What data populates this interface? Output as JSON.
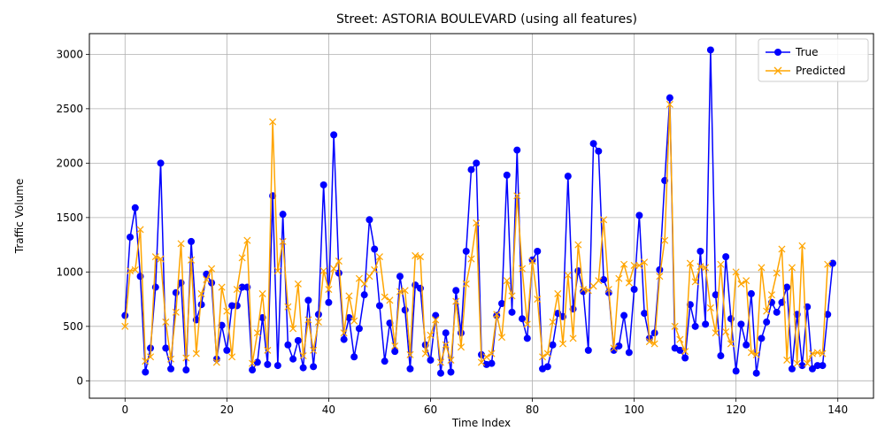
{
  "chart_data": {
    "type": "line",
    "title": "Street: ASTORIA BOULEVARD (using all features)",
    "xlabel": "Time Index",
    "ylabel": "Traffic Volume",
    "xlim": [
      -7,
      147
    ],
    "ylim": [
      -160,
      3190
    ],
    "xticks": [
      0,
      20,
      40,
      60,
      80,
      100,
      120,
      140
    ],
    "yticks": [
      0,
      500,
      1000,
      1500,
      2000,
      2500,
      3000
    ],
    "grid": true,
    "legend_position": "top-right",
    "series": [
      {
        "name": "True",
        "color": "#0000ff",
        "marker": "circle",
        "values": [
          600,
          1320,
          1590,
          960,
          80,
          300,
          860,
          2000,
          300,
          110,
          810,
          900,
          100,
          1280,
          560,
          700,
          980,
          900,
          200,
          510,
          280,
          690,
          690,
          860,
          860,
          100,
          170,
          580,
          150,
          1700,
          140,
          1530,
          330,
          200,
          370,
          120,
          740,
          130,
          610,
          1800,
          720,
          2260,
          990,
          380,
          580,
          220,
          480,
          790,
          1480,
          1210,
          690,
          180,
          530,
          270,
          960,
          650,
          110,
          880,
          850,
          330,
          190,
          600,
          70,
          440,
          80,
          830,
          440,
          1190,
          1940,
          2000,
          240,
          150,
          160,
          600,
          710,
          1890,
          630,
          2120,
          570,
          390,
          1110,
          1190,
          110,
          130,
          330,
          620,
          590,
          1880,
          660,
          1010,
          820,
          280,
          2180,
          2110,
          930,
          810,
          280,
          320,
          600,
          260,
          840,
          1520,
          620,
          390,
          440,
          1020,
          1840,
          2600,
          300,
          280,
          210,
          700,
          500,
          1190,
          520,
          3040,
          790,
          230,
          1140,
          570,
          90,
          520,
          330,
          800,
          70,
          390,
          540,
          720,
          630,
          720,
          860,
          110,
          610,
          140,
          680,
          110,
          140,
          140,
          610,
          1080
        ]
      },
      {
        "name": "Predicted",
        "color": "#ffa500",
        "marker": "x",
        "values": [
          500,
          1010,
          1020,
          1390,
          180,
          220,
          1140,
          1120,
          540,
          200,
          630,
          1260,
          210,
          1110,
          250,
          800,
          930,
          1030,
          170,
          860,
          640,
          220,
          840,
          1130,
          1290,
          160,
          440,
          800,
          280,
          2380,
          1010,
          1280,
          680,
          480,
          890,
          230,
          560,
          280,
          540,
          1010,
          840,
          1030,
          1100,
          440,
          780,
          550,
          940,
          890,
          960,
          1020,
          1140,
          770,
          740,
          320,
          820,
          830,
          240,
          1150,
          1140,
          250,
          420,
          560,
          170,
          330,
          190,
          730,
          310,
          890,
          1120,
          1450,
          170,
          220,
          250,
          610,
          400,
          920,
          780,
          1700,
          1030,
          520,
          1100,
          750,
          220,
          250,
          540,
          800,
          340,
          970,
          390,
          1250,
          840,
          830,
          870,
          920,
          1480,
          840,
          300,
          940,
          1070,
          900,
          1060,
          1060,
          1090,
          360,
          340,
          960,
          1290,
          2540,
          500,
          380,
          270,
          1080,
          910,
          1050,
          1040,
          670,
          440,
          1070,
          450,
          340,
          1000,
          890,
          920,
          260,
          240,
          1040,
          640,
          790,
          990,
          1210,
          190,
          1040,
          160,
          1240,
          160,
          250,
          260,
          250,
          1070
        ]
      }
    ]
  }
}
